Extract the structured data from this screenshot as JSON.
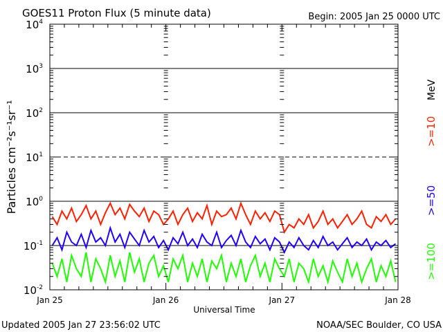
{
  "chart_data": {
    "type": "line",
    "title": "GOES11 Proton Flux (5 minute data)",
    "subtitle": "Begin: 2005 Jan 25 0000 UTC",
    "xlabel": "Universal Time",
    "ylabel": "Particles cm⁻²s⁻¹sr⁻¹",
    "x_unit": "hours since 2005 Jan 25 0000 UTC",
    "xlim": [
      0,
      72
    ],
    "x_ticks": [
      {
        "value": 0,
        "label": "Jan 25"
      },
      {
        "value": 24,
        "label": "Jan 26"
      },
      {
        "value": 48,
        "label": "Jan 27"
      },
      {
        "value": 72,
        "label": "Jan 28"
      }
    ],
    "y_scale": "log",
    "ylim": [
      0.01,
      10000
    ],
    "y_ticks": [
      {
        "value": 10000,
        "base": "10",
        "exp": "4"
      },
      {
        "value": 1000,
        "base": "10",
        "exp": "3"
      },
      {
        "value": 100,
        "base": "10",
        "exp": "2"
      },
      {
        "value": 10,
        "base": "10",
        "exp": "1"
      },
      {
        "value": 1,
        "base": "10",
        "exp": "0"
      },
      {
        "value": 0.1,
        "base": "10",
        "exp": "-1"
      },
      {
        "value": 0.01,
        "base": "10",
        "exp": "-2"
      }
    ],
    "grid": {
      "solid": [
        1000,
        100,
        1,
        0.1
      ],
      "dashed": [
        10
      ]
    },
    "legend_unit": "MeV",
    "series": [
      {
        "name": ">=10",
        "color": "#ff2000",
        "values": [
          0.45,
          0.3,
          0.6,
          0.4,
          0.7,
          0.35,
          0.5,
          0.8,
          0.4,
          0.6,
          0.3,
          0.55,
          0.9,
          0.5,
          0.7,
          0.4,
          0.85,
          0.6,
          0.45,
          0.7,
          0.35,
          0.6,
          0.5,
          0.3,
          0.4,
          0.6,
          0.3,
          0.5,
          0.7,
          0.35,
          0.55,
          0.4,
          0.8,
          0.3,
          0.6,
          0.45,
          0.5,
          0.7,
          0.4,
          0.9,
          0.5,
          0.3,
          0.6,
          0.4,
          0.55,
          0.35,
          0.6,
          0.5,
          0.2,
          0.3,
          0.25,
          0.4,
          0.3,
          0.5,
          0.25,
          0.35,
          0.6,
          0.3,
          0.4,
          0.25,
          0.35,
          0.5,
          0.3,
          0.4,
          0.6,
          0.3,
          0.25,
          0.45,
          0.35,
          0.5,
          0.3,
          0.4
        ]
      },
      {
        "name": ">=50",
        "color": "#2000ff",
        "values": [
          0.1,
          0.15,
          0.08,
          0.2,
          0.12,
          0.1,
          0.18,
          0.09,
          0.22,
          0.12,
          0.15,
          0.1,
          0.25,
          0.12,
          0.18,
          0.09,
          0.2,
          0.14,
          0.1,
          0.22,
          0.12,
          0.16,
          0.09,
          0.13,
          0.08,
          0.15,
          0.11,
          0.2,
          0.1,
          0.14,
          0.09,
          0.18,
          0.12,
          0.1,
          0.2,
          0.09,
          0.13,
          0.17,
          0.1,
          0.22,
          0.12,
          0.09,
          0.16,
          0.11,
          0.14,
          0.08,
          0.15,
          0.12,
          0.07,
          0.12,
          0.09,
          0.15,
          0.1,
          0.08,
          0.13,
          0.09,
          0.16,
          0.1,
          0.12,
          0.08,
          0.11,
          0.15,
          0.09,
          0.12,
          0.1,
          0.14,
          0.08,
          0.12,
          0.1,
          0.13,
          0.09,
          0.11
        ]
      },
      {
        "name": ">=100",
        "color": "#20ff00",
        "values": [
          0.04,
          0.02,
          0.05,
          0.015,
          0.06,
          0.03,
          0.02,
          0.07,
          0.015,
          0.05,
          0.03,
          0.015,
          0.06,
          0.02,
          0.045,
          0.015,
          0.07,
          0.025,
          0.05,
          0.015,
          0.04,
          0.06,
          0.02,
          0.035,
          0.015,
          0.05,
          0.03,
          0.06,
          0.015,
          0.04,
          0.02,
          0.05,
          0.015,
          0.045,
          0.03,
          0.06,
          0.015,
          0.04,
          0.02,
          0.05,
          0.015,
          0.035,
          0.06,
          0.02,
          0.04,
          0.015,
          0.05,
          0.03,
          0.02,
          0.05,
          0.015,
          0.04,
          0.03,
          0.015,
          0.05,
          0.02,
          0.035,
          0.015,
          0.045,
          0.025,
          0.015,
          0.05,
          0.02,
          0.04,
          0.015,
          0.03,
          0.05,
          0.015,
          0.035,
          0.02,
          0.045,
          0.015
        ]
      }
    ]
  },
  "footer": {
    "updated": "Updated 2005 Jan 27 23:56:02 UTC",
    "source": "NOAA/SEC Boulder, CO USA"
  }
}
